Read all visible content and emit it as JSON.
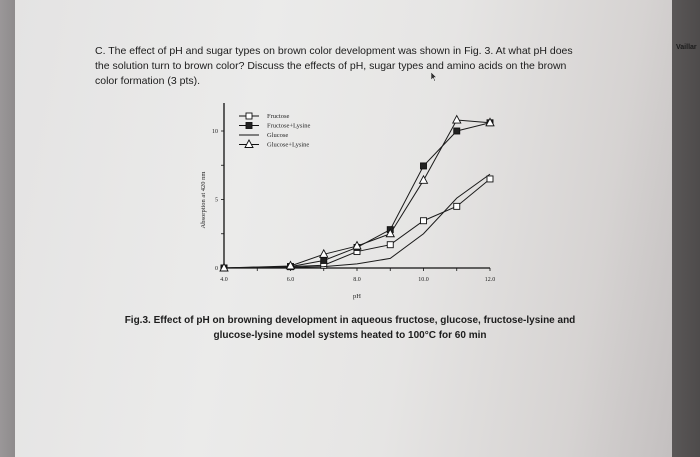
{
  "question": {
    "line1": "C. The effect of pH and sugar types on brown color development was shown in Fig. 3.  At what pH does",
    "line2": "the solution turn to brown color? Discuss the effects of pH, sugar types and amino acids on the brown",
    "line3": "color formation (3 pts)."
  },
  "caption": {
    "line1": "Fig.3. Effect of pH on browning development in aqueous fructose, glucose, fructose-lysine and",
    "line2": "glucose-lysine model systems heated to 100°C for 60 min"
  },
  "side_tab": {
    "label": "Vaillar"
  },
  "chart_data": {
    "type": "line",
    "title": "",
    "xlabel": "pH",
    "ylabel": "Absorption at 420 nm",
    "xlim": [
      4.0,
      12.0
    ],
    "ylim": [
      0,
      11
    ],
    "x_ticks": [
      "4.0",
      "6.0",
      "8.0",
      "10.0",
      "12.0"
    ],
    "y_ticks": [
      "0",
      "5",
      "10"
    ],
    "grid": false,
    "legend_position": "upper-left",
    "x": [
      4.0,
      6.0,
      7.0,
      8.0,
      9.0,
      10.0,
      11.0,
      12.0
    ],
    "series": [
      {
        "name": "Fructose",
        "marker": "open-square",
        "values": [
          0,
          0.1,
          0.2,
          1.2,
          1.7,
          3.45,
          4.5,
          6.5
        ]
      },
      {
        "name": "Fructose+Lysine",
        "marker": "filled-square",
        "values": [
          0,
          0.1,
          0.55,
          1.5,
          2.8,
          7.45,
          10.0,
          10.6
        ]
      },
      {
        "name": "Glucose",
        "marker": "none",
        "values": [
          0,
          0.05,
          0.1,
          0.3,
          0.7,
          2.5,
          5.1,
          6.85
        ]
      },
      {
        "name": "Glucose+Lysine",
        "marker": "open-triangle",
        "values": [
          0,
          0.15,
          1.0,
          1.6,
          2.5,
          6.4,
          10.8,
          10.6
        ]
      }
    ]
  }
}
